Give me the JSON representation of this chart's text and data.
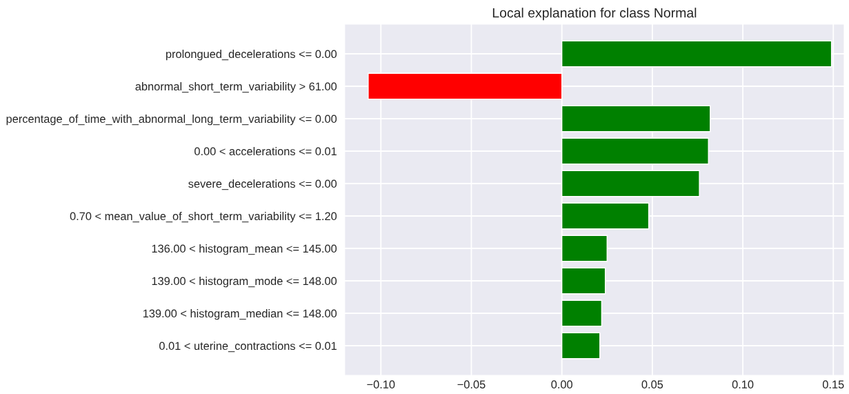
{
  "chart_data": {
    "type": "bar",
    "orientation": "horizontal",
    "title": "Local explanation for class Normal",
    "categories": [
      "prolongued_decelerations <= 0.00",
      "abnormal_short_term_variability > 61.00",
      "percentage_of_time_with_abnormal_long_term_variability <= 0.00",
      "0.00 < accelerations <= 0.01",
      "severe_decelerations <= 0.00",
      "0.70 < mean_value_of_short_term_variability <= 1.20",
      "136.00 < histogram_mean <= 145.00",
      "139.00 < histogram_mode <= 148.00",
      "139.00 < histogram_median <= 148.00",
      "0.01 < uterine_contractions <= 0.01"
    ],
    "values": [
      0.149,
      -0.107,
      0.082,
      0.081,
      0.076,
      0.048,
      0.025,
      0.024,
      0.022,
      0.021
    ],
    "colors": [
      "#008000",
      "#ff0000",
      "#008000",
      "#008000",
      "#008000",
      "#008000",
      "#008000",
      "#008000",
      "#008000",
      "#008000"
    ],
    "xlim": [
      -0.12,
      0.156
    ],
    "xticks": [
      {
        "value": -0.1,
        "label": "−0.10"
      },
      {
        "value": -0.05,
        "label": "−0.05"
      },
      {
        "value": 0.0,
        "label": "0.00"
      },
      {
        "value": 0.05,
        "label": "0.05"
      },
      {
        "value": 0.1,
        "label": "0.10"
      },
      {
        "value": 0.15,
        "label": "0.15"
      }
    ],
    "grid": true
  }
}
